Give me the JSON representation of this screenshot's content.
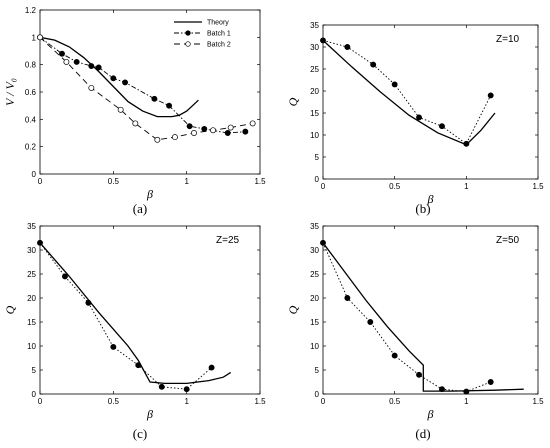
{
  "chart_data": [
    {
      "panel_label": "(a)",
      "type": "line",
      "xlabel": "β",
      "ylabel": "V / V₀",
      "xlim": [
        0,
        1.5
      ],
      "ylim": [
        0,
        1.2
      ],
      "xticks": [
        "0",
        "0.5",
        "1",
        "1.5"
      ],
      "yticks": [
        "0",
        "0.2",
        "0.4",
        "0.6",
        "0.8",
        "1",
        "1.2"
      ],
      "legend": {
        "position": "top-right",
        "entries": [
          "Theory",
          "Batch 1",
          "Batch 2"
        ]
      },
      "series": [
        {
          "name": "Theory",
          "style": "solid",
          "marker": "none",
          "x": [
            0,
            0.1,
            0.2,
            0.3,
            0.4,
            0.5,
            0.6,
            0.7,
            0.8,
            0.9,
            0.95,
            1.0,
            1.05,
            1.08
          ],
          "y": [
            1.0,
            0.98,
            0.93,
            0.85,
            0.75,
            0.64,
            0.53,
            0.46,
            0.42,
            0.42,
            0.43,
            0.46,
            0.51,
            0.54
          ]
        },
        {
          "name": "Batch 1",
          "style": "dashdot",
          "marker": "filled-circle",
          "x": [
            0,
            0.15,
            0.25,
            0.35,
            0.4,
            0.5,
            0.58,
            0.78,
            0.88,
            1.02,
            1.12,
            1.28,
            1.4
          ],
          "y": [
            1.0,
            0.88,
            0.82,
            0.79,
            0.78,
            0.7,
            0.67,
            0.55,
            0.5,
            0.35,
            0.33,
            0.3,
            0.31
          ]
        },
        {
          "name": "Batch 2",
          "style": "dashed",
          "marker": "open-circle",
          "x": [
            0,
            0.18,
            0.35,
            0.55,
            0.65,
            0.8,
            0.92,
            1.05,
            1.18,
            1.3,
            1.45
          ],
          "y": [
            1.0,
            0.82,
            0.63,
            0.47,
            0.37,
            0.25,
            0.27,
            0.3,
            0.32,
            0.34,
            0.37
          ]
        }
      ]
    },
    {
      "panel_label": "(b)",
      "type": "line",
      "annotation": "Z=10",
      "xlabel": "β",
      "ylabel": "Q",
      "xlim": [
        0,
        1.5
      ],
      "ylim": [
        0,
        35
      ],
      "xticks": [
        "0",
        "0.5",
        "1",
        "1.5"
      ],
      "yticks": [
        "0",
        "5",
        "10",
        "15",
        "20",
        "25",
        "30",
        "35"
      ],
      "series": [
        {
          "style": "solid",
          "marker": "none",
          "x": [
            0,
            0.2,
            0.4,
            0.6,
            0.8,
            1.0,
            1.1,
            1.2
          ],
          "y": [
            31.5,
            25.5,
            19.8,
            14.5,
            10.5,
            7.8,
            11,
            15
          ]
        },
        {
          "style": "dotted",
          "marker": "filled-circle",
          "x": [
            0,
            0.17,
            0.35,
            0.5,
            0.67,
            0.83,
            1.0,
            1.17
          ],
          "y": [
            31.5,
            30,
            26,
            21.5,
            14,
            12,
            8,
            19
          ]
        }
      ]
    },
    {
      "panel_label": "(c)",
      "type": "line",
      "annotation": "Z=25",
      "xlabel": "β",
      "ylabel": "Q",
      "xlim": [
        0,
        1.5
      ],
      "ylim": [
        0,
        35
      ],
      "xticks": [
        "0",
        "0.5",
        "1",
        "1.5"
      ],
      "yticks": [
        "0",
        "5",
        "10",
        "15",
        "20",
        "25",
        "30",
        "35"
      ],
      "series": [
        {
          "style": "solid",
          "marker": "none",
          "x": [
            0,
            0.2,
            0.4,
            0.6,
            0.67,
            0.75,
            0.85,
            1.0,
            1.15,
            1.25,
            1.3
          ],
          "y": [
            31.5,
            24.5,
            17,
            10,
            7,
            2.5,
            2.2,
            2.2,
            2.8,
            3.5,
            4.5
          ]
        },
        {
          "style": "dotted",
          "marker": "filled-circle",
          "x": [
            0,
            0.17,
            0.33,
            0.5,
            0.67,
            0.83,
            1.0,
            1.17
          ],
          "y": [
            31.5,
            24.5,
            19,
            9.8,
            6,
            1.5,
            1,
            5.5
          ]
        }
      ]
    },
    {
      "panel_label": "(d)",
      "type": "line",
      "annotation": "Z=50",
      "xlabel": "β",
      "ylabel": "Q",
      "xlim": [
        0,
        1.5
      ],
      "ylim": [
        0,
        35
      ],
      "xticks": [
        "0",
        "0.5",
        "1",
        "1.5"
      ],
      "yticks": [
        "0",
        "5",
        "10",
        "15",
        "20",
        "25",
        "30",
        "35"
      ],
      "series": [
        {
          "style": "solid",
          "marker": "none",
          "x": [
            0,
            0.15,
            0.3,
            0.45,
            0.6,
            0.7,
            0.7,
            0.9,
            1.2,
            1.4
          ],
          "y": [
            31.5,
            25.5,
            19.5,
            14,
            9,
            6,
            0.6,
            0.6,
            0.8,
            1
          ]
        },
        {
          "style": "dotted",
          "marker": "filled-circle",
          "x": [
            0,
            0.17,
            0.33,
            0.5,
            0.67,
            0.83,
            1.0,
            1.17
          ],
          "y": [
            31.5,
            20,
            15,
            8,
            4,
            1,
            0.5,
            2.5
          ]
        }
      ]
    }
  ]
}
